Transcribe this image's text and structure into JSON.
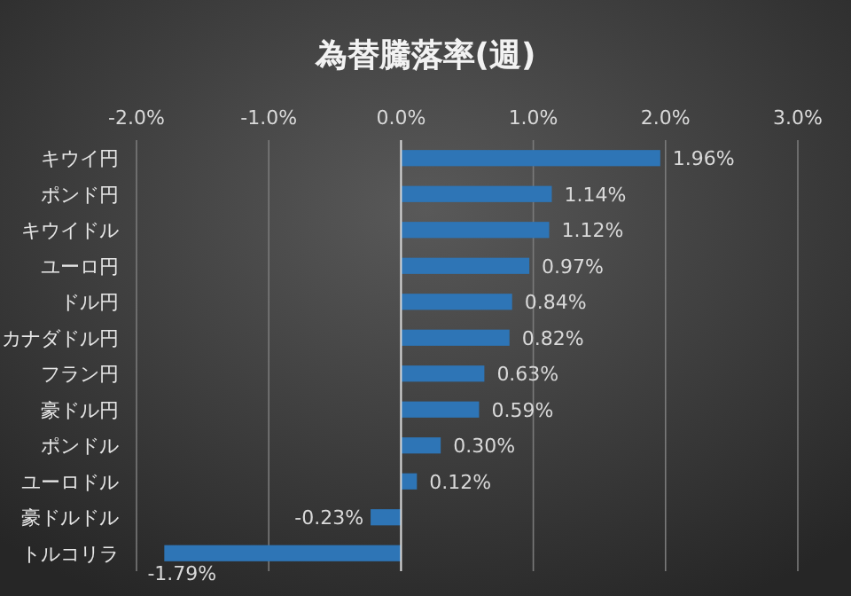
{
  "chart_data": {
    "type": "bar",
    "orientation": "horizontal",
    "title": "為替騰落率(週)",
    "categories": [
      "キウイ円",
      "ポンド円",
      "キウイドル",
      "ユーロ円",
      "ドル円",
      "カナダドル円",
      "フラン円",
      "豪ドル円",
      "ポンドル",
      "ユーロドル",
      "豪ドルドル",
      "トルコリラ"
    ],
    "values": [
      1.96,
      1.14,
      1.12,
      0.97,
      0.84,
      0.82,
      0.63,
      0.59,
      0.3,
      0.12,
      -0.23,
      -1.79
    ],
    "value_labels": [
      "1.96%",
      "1.14%",
      "1.12%",
      "0.97%",
      "0.84%",
      "0.82%",
      "0.63%",
      "0.59%",
      "0.30%",
      "0.12%",
      "-0.23%",
      "-1.79%"
    ],
    "color": "#2e75b6",
    "xlim": [
      -2,
      3
    ],
    "xticks": [
      {
        "value": -2,
        "label": "-2.0%"
      },
      {
        "value": -1,
        "label": "-1.0%"
      },
      {
        "value": 0,
        "label": "0.0%"
      },
      {
        "value": 1,
        "label": "1.0%"
      },
      {
        "value": 2,
        "label": "2.0%"
      },
      {
        "value": 3,
        "label": "3.0%"
      }
    ],
    "grid": "x"
  }
}
